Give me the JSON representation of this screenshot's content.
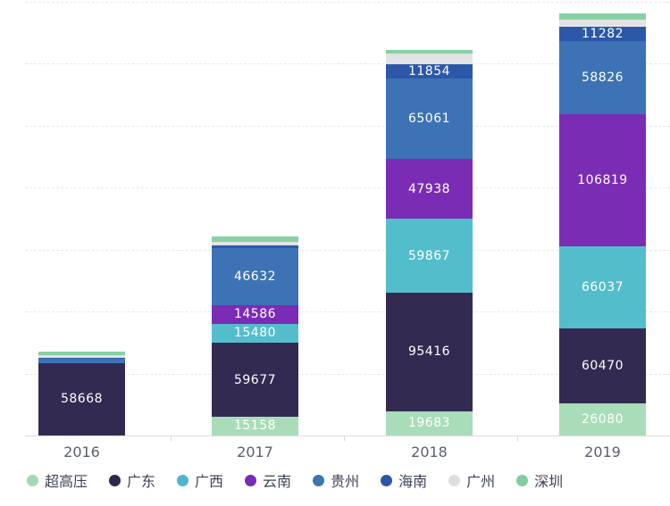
{
  "chart_data": {
    "type": "bar",
    "stacked": true,
    "title": "",
    "xlabel": "",
    "ylabel": "",
    "categories": [
      "2016",
      "2017",
      "2018",
      "2019"
    ],
    "series": [
      {
        "name": "超高压",
        "color": "#a9ddb9",
        "legend_color": "#a4d8b4",
        "values": [
          0,
          15158,
          19683,
          26080
        ],
        "labels": [
          "",
          "15158",
          "19683",
          "26080"
        ]
      },
      {
        "name": "广东",
        "color": "#332a52",
        "legend_color": "#2f2750",
        "values": [
          58668,
          59677,
          95416,
          60470
        ],
        "labels": [
          "58668",
          "59677",
          "95416",
          "60470"
        ]
      },
      {
        "name": "广西",
        "color": "#54bdcb",
        "legend_color": "#4bb8ce",
        "values": [
          0,
          15480,
          59867,
          66037
        ],
        "labels": [
          "",
          "15480",
          "59867",
          "66037"
        ]
      },
      {
        "name": "云南",
        "color": "#7b2cb5",
        "legend_color": "#7a2ab8",
        "values": [
          0,
          14586,
          47938,
          106819
        ],
        "labels": [
          "",
          "14586",
          "47938",
          "106819"
        ]
      },
      {
        "name": "贵州",
        "color": "#3d73b5",
        "legend_color": "#3e73b3",
        "values": [
          2900,
          46632,
          65061,
          58826
        ],
        "labels": [
          "",
          "46632",
          "65061",
          "58826"
        ]
      },
      {
        "name": "海南",
        "color": "#2d57a8",
        "legend_color": "#2c56a8",
        "values": [
          1100,
          1500,
          11854,
          11282
        ],
        "labels": [
          "",
          "",
          "11854",
          "11282"
        ]
      },
      {
        "name": "广州",
        "color": "#e1e3e4",
        "legend_color": "#dcdfe2",
        "values": [
          2200,
          3000,
          8000,
          6100
        ],
        "labels": [
          "",
          "",
          "",
          ""
        ]
      },
      {
        "name": "深圳",
        "color": "#88d1a3",
        "legend_color": "#7fcd9e",
        "values": [
          2900,
          4500,
          3400,
          4800
        ],
        "labels": [
          "",
          "",
          "",
          ""
        ]
      }
    ],
    "value_axis": {
      "min": 0,
      "max": 350000,
      "grid_step": 50000,
      "gridlines_visible": true,
      "tick_labels_visible": false
    },
    "legend_position": "bottom",
    "note": "unlabeled thin segments are pixel-height estimates"
  },
  "colors": {
    "background": "#ffffff",
    "gridline": "#e7e7ee",
    "axis_line": "#dcdce2",
    "category_label": "#5a5e6e",
    "legend_label": "#3c4157",
    "value_label": "#ffffff"
  }
}
